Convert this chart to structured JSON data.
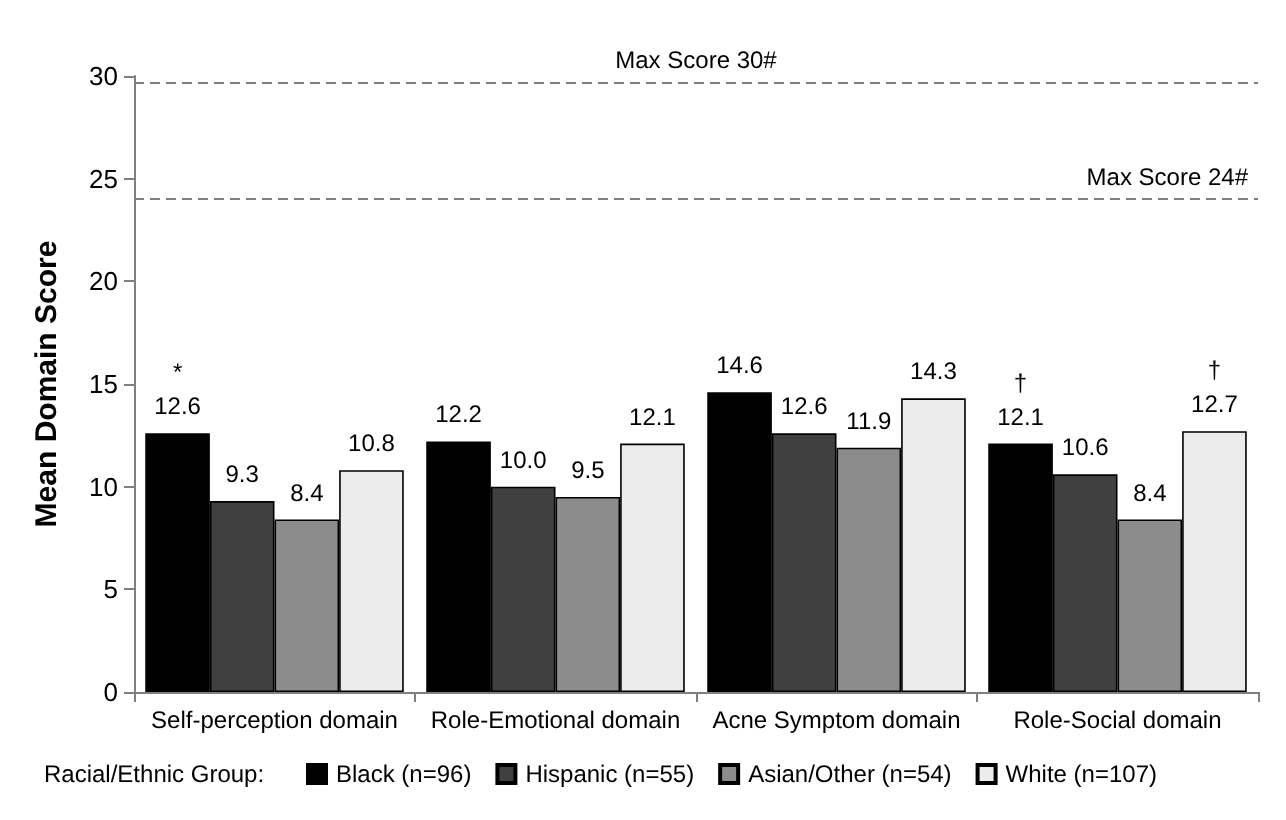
{
  "chart_data": {
    "type": "bar",
    "ylabel": "Mean Domain Score",
    "legend_title": "Racial/Ethnic Group:",
    "legend": "bottom",
    "grid": false,
    "categories": [
      "Self-perception domain",
      "Role-Emotional domain",
      "Acne Symptom domain",
      "Role-Social domain"
    ],
    "ylim": [
      0,
      30
    ],
    "yticks": [
      0,
      5,
      10,
      15,
      20,
      25,
      30
    ],
    "series": [
      {
        "name": "Black (n=96)",
        "color": "#000000",
        "values": [
          12.6,
          12.2,
          14.6,
          12.1
        ],
        "value_labels": [
          "*\n12.6",
          "12.2",
          "14.6",
          "†\n12.1"
        ]
      },
      {
        "name": "Hispanic (n=55)",
        "color": "#404040",
        "values": [
          9.3,
          10.0,
          12.6,
          10.6
        ],
        "value_labels": [
          "9.3",
          "10.0",
          "12.6",
          "10.6"
        ]
      },
      {
        "name": "Asian/Other (n=54)",
        "color": "#8c8c8c",
        "values": [
          8.4,
          9.5,
          11.9,
          8.4
        ],
        "value_labels": [
          "8.4",
          "9.5",
          "11.9",
          "8.4"
        ]
      },
      {
        "name": "White (n=107)",
        "color": "#ececec",
        "values": [
          10.8,
          12.1,
          14.3,
          12.7
        ],
        "value_labels": [
          "10.8",
          "12.1",
          "14.3",
          "†\n12.7"
        ]
      }
    ],
    "ref_lines": [
      {
        "axis": "y",
        "value": 29.7,
        "label": "Max Score 30#",
        "color": "#808080",
        "line_style": "dashed"
      },
      {
        "axis": "y",
        "value": 24,
        "label": "Max Score 24#",
        "color": "#808080",
        "line_style": "dashed"
      }
    ]
  }
}
